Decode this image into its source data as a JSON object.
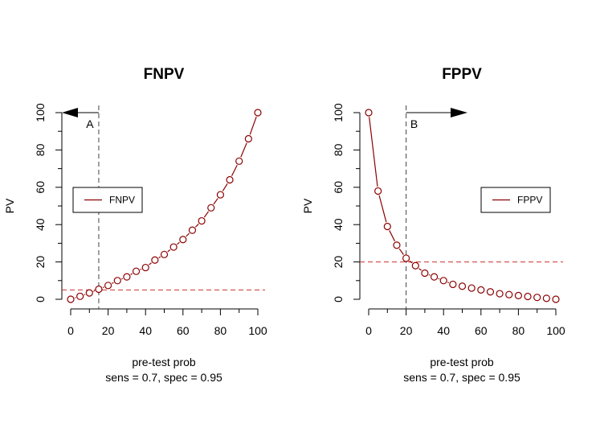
{
  "chart_data": [
    {
      "type": "line",
      "title": "FNPV",
      "xlabel": "pre-test prob",
      "sublabel": "sens =  0.7, spec =  0.95",
      "ylabel": "PV",
      "xlim": [
        0,
        100
      ],
      "ylim": [
        0,
        100
      ],
      "xticks": [
        0,
        20,
        40,
        60,
        80,
        100
      ],
      "yticks": [
        0,
        20,
        40,
        60,
        80,
        100
      ],
      "x": [
        0,
        5,
        10,
        15,
        20,
        25,
        30,
        35,
        40,
        45,
        50,
        55,
        60,
        65,
        70,
        75,
        80,
        85,
        90,
        95,
        100
      ],
      "series": [
        {
          "name": "FNPV",
          "values": [
            0,
            1.6,
            3.4,
            5.4,
            7.4,
            10,
            12,
            15,
            17,
            21,
            24,
            28,
            32,
            37,
            42,
            49,
            56,
            64,
            74,
            86,
            100
          ]
        }
      ],
      "vline": 15,
      "hline": 5,
      "arrow": {
        "direction": "left",
        "label": "A"
      },
      "legend": "left",
      "colors": {
        "series": "#8b0000",
        "hline": "#cc3333",
        "vline": "#444444"
      }
    },
    {
      "type": "line",
      "title": "FPPV",
      "xlabel": "pre-test prob",
      "sublabel": "sens =  0.7, spec =  0.95",
      "ylabel": "PV",
      "xlim": [
        0,
        100
      ],
      "ylim": [
        0,
        100
      ],
      "xticks": [
        0,
        20,
        40,
        60,
        80,
        100
      ],
      "yticks": [
        0,
        20,
        40,
        60,
        80,
        100
      ],
      "x": [
        0,
        5,
        10,
        15,
        20,
        25,
        30,
        35,
        40,
        45,
        50,
        55,
        60,
        65,
        70,
        75,
        80,
        85,
        90,
        95,
        100
      ],
      "series": [
        {
          "name": "FPPV",
          "values": [
            100,
            58,
            39,
            29,
            22,
            18,
            14,
            12,
            10,
            8,
            7,
            6,
            5,
            4,
            3,
            2.5,
            2,
            1.5,
            1,
            0.5,
            0
          ]
        }
      ],
      "vline": 20,
      "hline": 20,
      "arrow": {
        "direction": "right",
        "label": "B"
      },
      "legend": "right",
      "colors": {
        "series": "#8b0000",
        "hline": "#cc3333",
        "vline": "#444444"
      }
    }
  ]
}
